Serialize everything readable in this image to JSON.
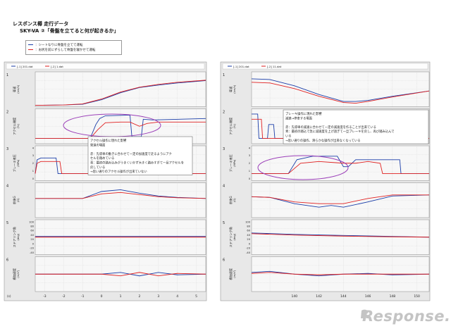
{
  "header": {
    "line1": "レスポンス樽 走行データ",
    "line2": "SKY-VA ②「骨盤を立てると何が起きるか」"
  },
  "legend": {
    "items": [
      {
        "label": "：シートなりに骨盤を立てて運転",
        "color": "#1a3da8"
      },
      {
        "label": "：お尻を前にずらして骨盤を寝かせて運転",
        "color": "#e02020"
      }
    ]
  },
  "chart_data": [
    {
      "type": "line",
      "panel": "left",
      "legend_labels": [
        "[-1] 201.dat",
        "[-2] 1.dat"
      ],
      "xlim": [
        -3.5,
        5.5
      ],
      "x_ticks": [
        -3,
        -2,
        -1,
        0,
        1,
        2,
        3,
        4,
        5
      ],
      "x_unit_label": "(s)",
      "subplots": [
        {
          "index": "1",
          "ylabel": "車速",
          "yunit": "(km/h)",
          "yticks": [],
          "series": [
            {
              "name": "1",
              "x": [
                -3.5,
                -2,
                -1,
                0,
                0.5,
                1,
                2,
                3,
                4,
                5.5
              ],
              "y": [
                0.04,
                0.05,
                0.07,
                0.2,
                0.3,
                0.4,
                0.55,
                0.62,
                0.68,
                0.75
              ]
            },
            {
              "name": "2",
              "x": [
                -3.5,
                -2,
                -1,
                0,
                0.5,
                1,
                2,
                3,
                4,
                5.5
              ],
              "y": [
                0.04,
                0.05,
                0.08,
                0.22,
                0.32,
                0.42,
                0.56,
                0.64,
                0.7,
                0.76
              ]
            }
          ]
        },
        {
          "index": "2",
          "ylabel": "アクセル開度",
          "yunit": "(%)",
          "yticks": [],
          "series": [
            {
              "name": "1",
              "x": [
                -3.5,
                -0.6,
                -0.3,
                -0.1,
                0.2,
                1.5,
                1.6,
                2.1,
                2.2,
                2.7,
                5.5
              ],
              "y": [
                0.15,
                0.15,
                0.55,
                0.72,
                0.8,
                0.82,
                0.2,
                0.2,
                0.7,
                0.68,
                0.72
              ]
            },
            {
              "name": "2",
              "x": [
                -3.5,
                -0.6,
                -0.2,
                0.2,
                1,
                1.5,
                2,
                2.4,
                3,
                5.5
              ],
              "y": [
                0.15,
                0.15,
                0.4,
                0.6,
                0.62,
                0.62,
                0.5,
                0.58,
                0.62,
                0.62
              ]
            }
          ]
        },
        {
          "index": "3",
          "ylabel": "ブレーキ液圧",
          "yunit": "(MPa)",
          "yticks": [
            "4",
            "3",
            "2",
            "1",
            "0"
          ],
          "series": [
            {
              "name": "1",
              "x": [
                -3.5,
                -3.4,
                -3.2,
                -2.4,
                -2.3,
                5.5
              ],
              "y": [
                0.2,
                0.6,
                0.65,
                0.65,
                0.2,
                0.2
              ]
            },
            {
              "name": "2",
              "x": [
                -3.5,
                -3.4,
                -3.2,
                -2.2,
                -2.1,
                5.5
              ],
              "y": [
                0.2,
                0.5,
                0.55,
                0.55,
                0.2,
                0.2
              ]
            }
          ]
        },
        {
          "index": "4",
          "ylabel": "前後G",
          "yunit": "(G)",
          "yticks": [],
          "series": [
            {
              "name": "1",
              "x": [
                -3.5,
                -1,
                0,
                1,
                2,
                3,
                4,
                5.5
              ],
              "y": [
                0.55,
                0.55,
                0.75,
                0.8,
                0.7,
                0.62,
                0.58,
                0.55
              ]
            },
            {
              "name": "2",
              "x": [
                -3.5,
                -1,
                0,
                1,
                2,
                3,
                4,
                5.5
              ],
              "y": [
                0.55,
                0.55,
                0.68,
                0.72,
                0.66,
                0.6,
                0.57,
                0.55
              ]
            }
          ]
        },
        {
          "index": "5",
          "ylabel": "ステアリング角",
          "yunit": "(deg)",
          "yticks": [
            "100",
            "80",
            "60",
            "40",
            "20",
            "0",
            "-20",
            "-40"
          ],
          "series": [
            {
              "name": "1",
              "x": [
                -3.5,
                5.5
              ],
              "y": [
                0.52,
                0.52
              ]
            },
            {
              "name": "2",
              "x": [
                -3.5,
                5.5
              ],
              "y": [
                0.5,
                0.5
              ]
            }
          ]
        },
        {
          "index": "6",
          "ylabel": "横加速度",
          "yunit": "(m/s²)",
          "yticks": [],
          "series": [
            {
              "name": "1",
              "x": [
                -3.5,
                0,
                1,
                2,
                3,
                4,
                5.5
              ],
              "y": [
                0.5,
                0.5,
                0.55,
                0.45,
                0.55,
                0.48,
                0.5
              ]
            },
            {
              "name": "2",
              "x": [
                -3.5,
                0,
                1,
                2,
                3,
                4,
                5.5
              ],
              "y": [
                0.5,
                0.5,
                0.45,
                0.55,
                0.45,
                0.52,
                0.5
              ]
            }
          ]
        }
      ]
    },
    {
      "type": "line",
      "panel": "right",
      "legend_labels": [
        "[-1] 201.dat",
        "[-2] 11.dat"
      ],
      "xlim": [
        136.5,
        151
      ],
      "x_ticks": [
        138,
        140,
        142,
        144,
        146,
        148,
        150
      ],
      "x_tick_labels": [
        "",
        "140",
        "142",
        "144",
        "146",
        "148",
        "150"
      ],
      "subplots": [
        {
          "index": "1",
          "ylabel": "車速",
          "yunit": "(km/h)",
          "yticks": [],
          "series": [
            {
              "name": "1",
              "x": [
                136.5,
                138,
                140,
                142,
                144,
                145,
                146,
                148,
                151
              ],
              "y": [
                0.8,
                0.78,
                0.6,
                0.35,
                0.15,
                0.15,
                0.18,
                0.3,
                0.45
              ]
            },
            {
              "name": "2",
              "x": [
                136.5,
                138,
                140,
                142,
                144,
                145,
                146,
                148,
                151
              ],
              "y": [
                0.7,
                0.68,
                0.52,
                0.3,
                0.12,
                0.1,
                0.15,
                0.28,
                0.45
              ]
            }
          ]
        },
        {
          "index": "2",
          "ylabel": "アクセル開度",
          "yunit": "(%)",
          "yticks": [],
          "series": [
            {
              "name": "1",
              "x": [
                136.5,
                137,
                137.1,
                137.8,
                137.9,
                138.3,
                138.4,
                151
              ],
              "y": [
                0.85,
                0.85,
                0.15,
                0.15,
                0.55,
                0.55,
                0.15,
                0.15
              ]
            },
            {
              "name": "2",
              "x": [
                136.5,
                137.3,
                137.4,
                151
              ],
              "y": [
                0.7,
                0.7,
                0.15,
                0.15
              ]
            }
          ]
        },
        {
          "index": "3",
          "ylabel": "ブレーキ液圧",
          "yunit": "(MPa)",
          "yticks": [
            "4",
            "3",
            "2",
            "1",
            "0"
          ],
          "series": [
            {
              "name": "1",
              "x": [
                136.5,
                139.5,
                140.2,
                141.5,
                143.5,
                144,
                144.4,
                145,
                148,
                148.6,
                148.7,
                151
              ],
              "y": [
                0.2,
                0.2,
                0.6,
                0.7,
                0.7,
                0.4,
                0.4,
                0.6,
                0.6,
                0.6,
                0.2,
                0.2
              ]
            },
            {
              "name": "2",
              "x": [
                136.5,
                139.5,
                140.5,
                142,
                144,
                145,
                146,
                147,
                147.2,
                151
              ],
              "y": [
                0.2,
                0.2,
                0.5,
                0.55,
                0.5,
                0.5,
                0.55,
                0.5,
                0.2,
                0.2
              ]
            }
          ]
        },
        {
          "index": "4",
          "ylabel": "前後G",
          "yunit": "(G)",
          "yticks": [],
          "series": [
            {
              "name": "1",
              "x": [
                136.5,
                138,
                140,
                142,
                143,
                144,
                146,
                148,
                151
              ],
              "y": [
                0.6,
                0.58,
                0.4,
                0.3,
                0.35,
                0.3,
                0.45,
                0.62,
                0.65
              ]
            },
            {
              "name": "2",
              "x": [
                136.5,
                138,
                140,
                142,
                144,
                146,
                148,
                151
              ],
              "y": [
                0.6,
                0.58,
                0.45,
                0.4,
                0.4,
                0.55,
                0.65,
                0.65
              ]
            }
          ]
        },
        {
          "index": "5",
          "ylabel": "ステアリング角",
          "yunit": "(deg)",
          "yticks": [
            "100",
            "80",
            "60",
            "40",
            "20",
            "0",
            "-20",
            "-40"
          ],
          "series": [
            {
              "name": "1",
              "x": [
                136.5,
                140,
                144,
                148,
                151
              ],
              "y": [
                0.62,
                0.58,
                0.55,
                0.52,
                0.5
              ]
            },
            {
              "name": "2",
              "x": [
                136.5,
                140,
                144,
                148,
                151
              ],
              "y": [
                0.6,
                0.56,
                0.53,
                0.51,
                0.5
              ]
            }
          ]
        },
        {
          "index": "6",
          "ylabel": "横加速度",
          "yunit": "(m/s²)",
          "yticks": [],
          "series": [
            {
              "name": "1",
              "x": [
                136.5,
                138,
                140,
                142,
                144,
                146,
                148,
                151
              ],
              "y": [
                0.55,
                0.58,
                0.5,
                0.45,
                0.5,
                0.52,
                0.48,
                0.5
              ]
            },
            {
              "name": "2",
              "x": [
                136.5,
                138,
                140,
                142,
                144,
                146,
                148,
                151
              ],
              "y": [
                0.52,
                0.55,
                0.5,
                0.48,
                0.5,
                0.5,
                0.5,
                0.5
              ]
            }
          ]
        }
      ]
    }
  ],
  "annotations": {
    "left": {
      "title": "アクセル操作に現れた影響",
      "subtitle": "発進の場面",
      "lines": [
        "赤：先導車の動きに合わせて一定の加速度で走るようにアク",
        "セルを踏めている",
        "青：最初の踏み込みがうまくいかず大きく踏みすぎて一旦アクセルを",
        "戻している",
        "→思い通りのアクセル操作が出来ていない"
      ]
    },
    "right": {
      "title": "ブレーキ操作に現れた影響",
      "subtitle": "減速→停車する場面",
      "lines": [
        "赤：先導車の減速に合わせて一定の減速度を作ることが出来ている",
        "青：最初の踏込で急に減速度を上げ過ぎて一旦ブレーキを戻し、再び踏み込んで",
        "いる",
        "→思い通りの操作、滑らかな操作が出来なくなっている"
      ]
    }
  },
  "logo": {
    "text": "Response."
  },
  "colors": {
    "series1": "#1a3da8",
    "series2": "#e02020",
    "highlight": "#9b3fb8",
    "panel_bg": "#e8e8e8",
    "plot_bg": "#f7f7f7"
  }
}
